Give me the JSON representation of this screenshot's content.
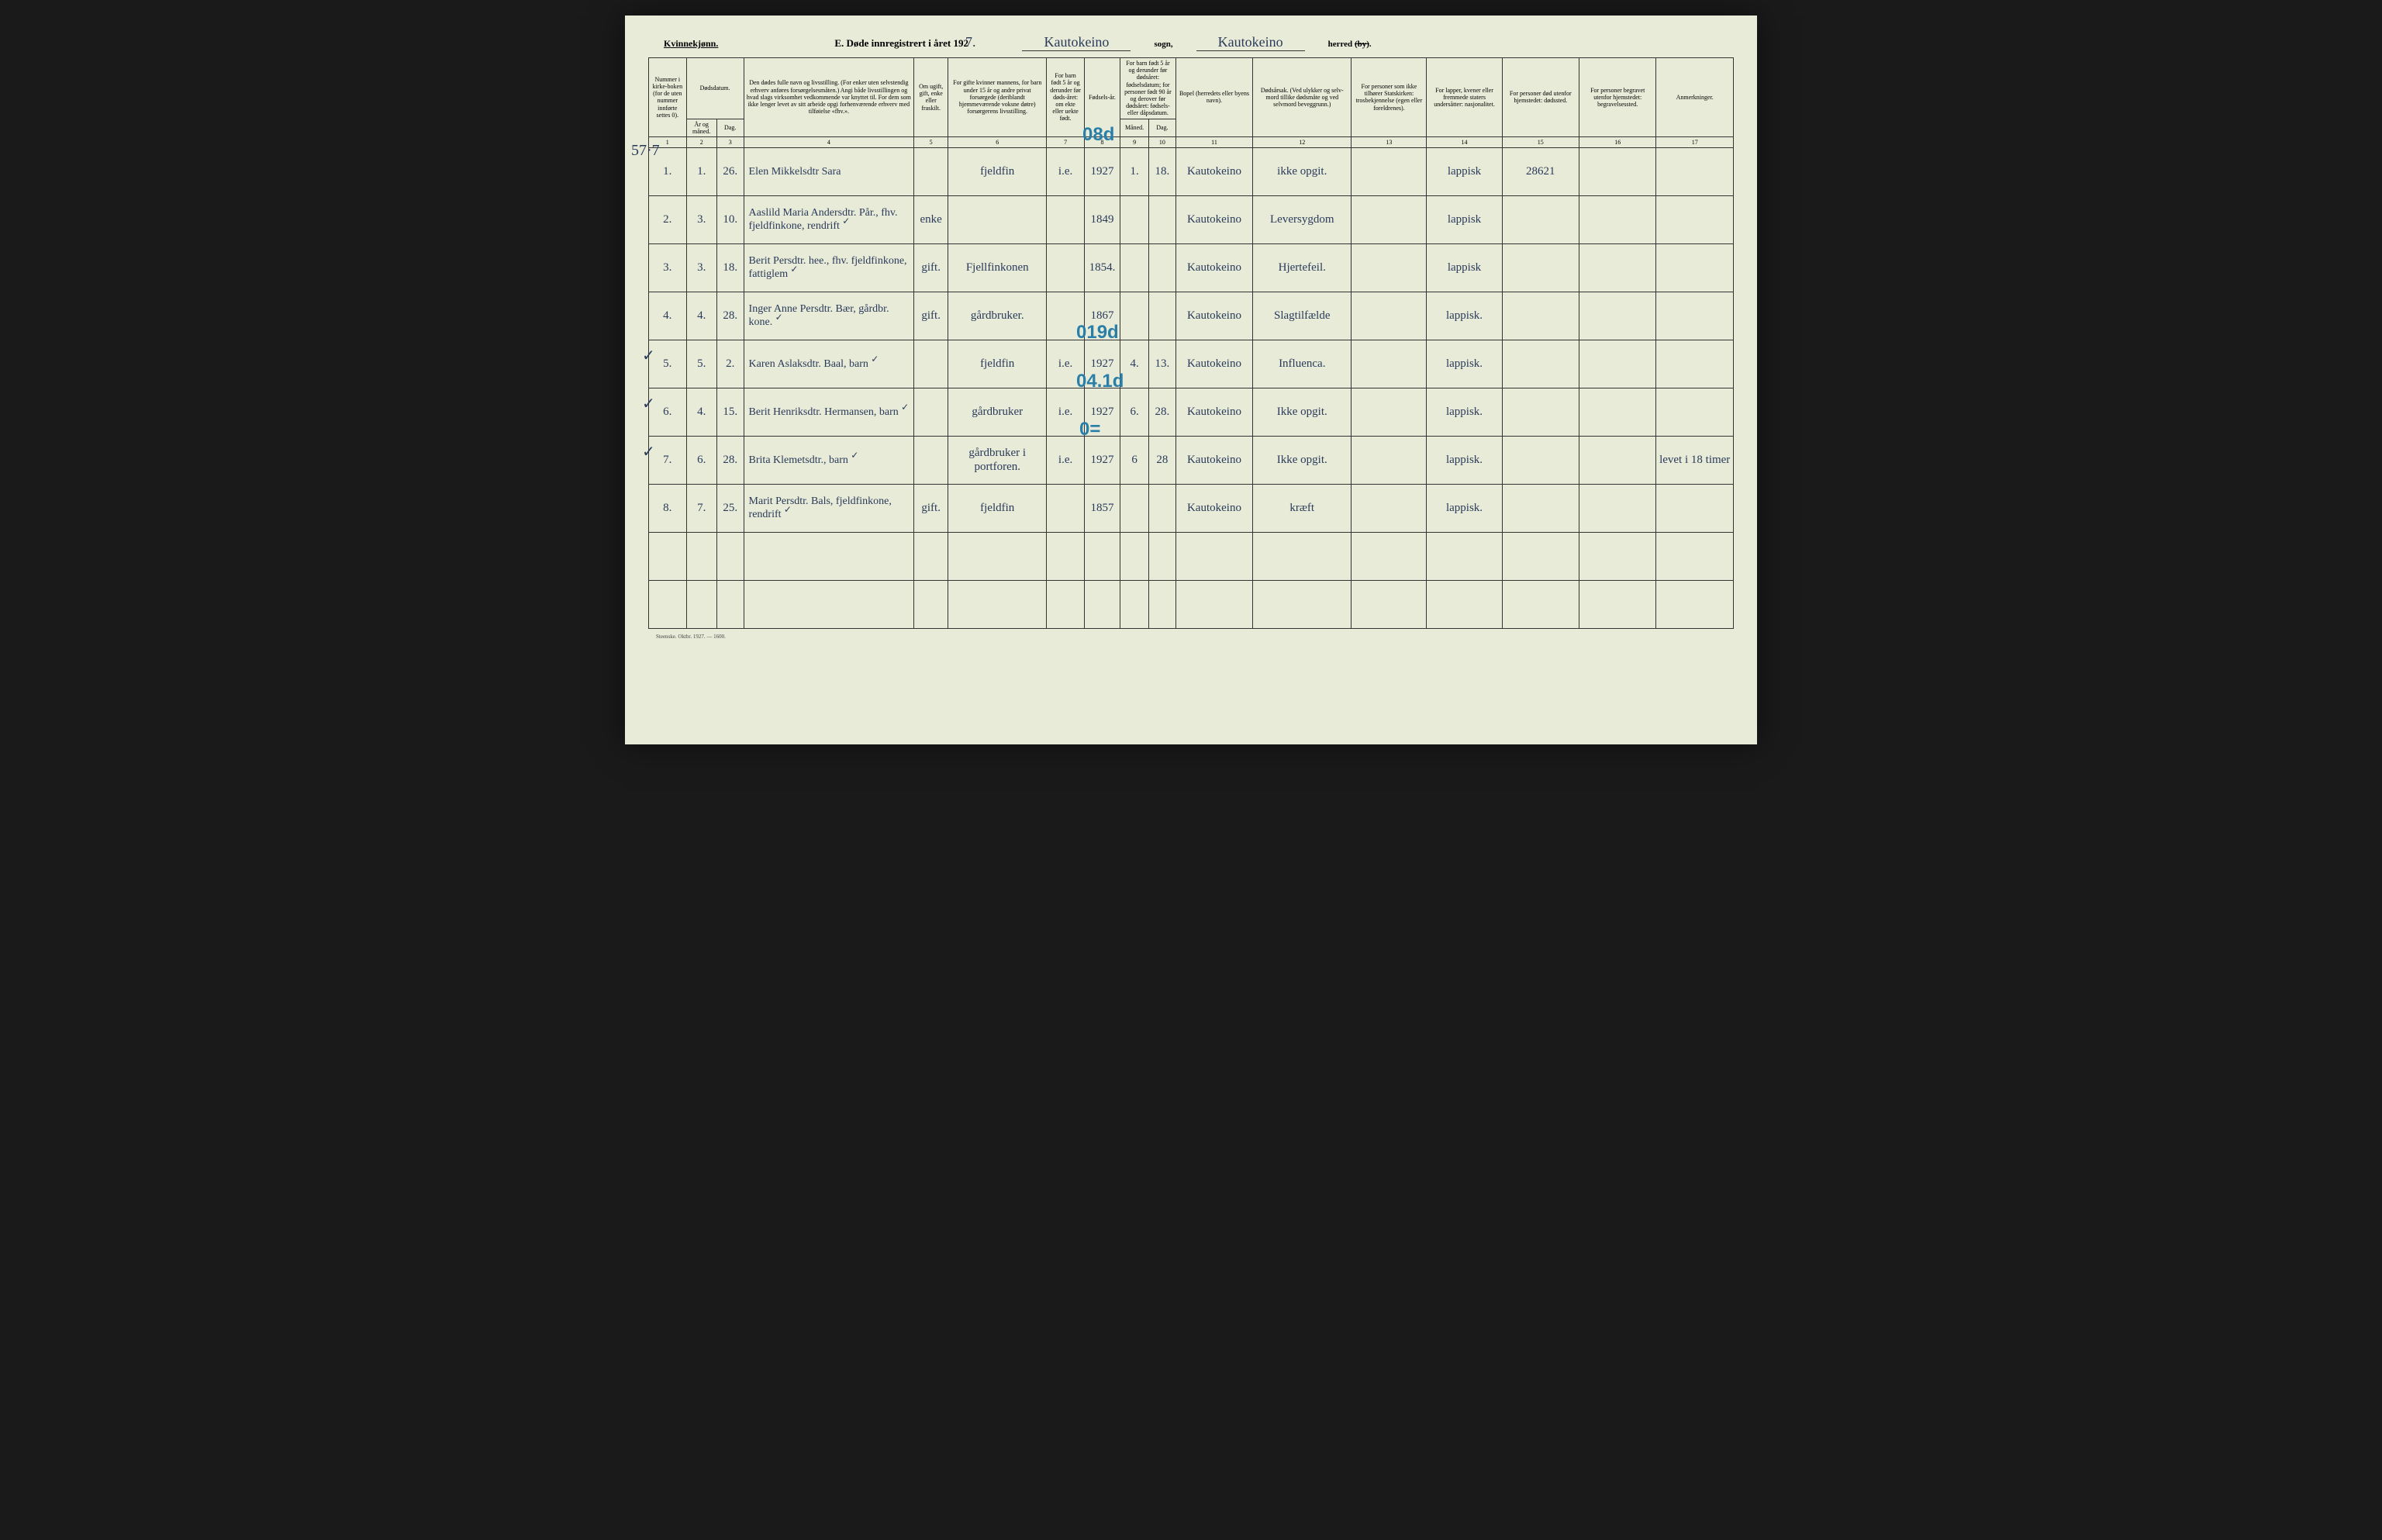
{
  "header": {
    "gender": "Kvinnekjønn.",
    "title_prefix": "E.  Døde innregistrert i året 192",
    "year_digit": "7.",
    "sogn_value": "Kautokeino",
    "sogn_label": "sogn,",
    "herred_value": "Kautokeino",
    "herred_label": "herred (by)."
  },
  "columns": {
    "c1": "Nummer i kirke-boken (for de uten nummer innførte settes 0).",
    "c2_top": "Dødsdatum.",
    "c2a": "År og måned.",
    "c2b": "Dag.",
    "c4": "Den dødes fulle navn og livsstilling. (For enker uten selvstendig erhverv anføres forsørgelsesmåten.) Angi både livsstillingen og hvad slags virksomhet vedkommende var knyttet til. For dem som ikke lenger levet av sitt arbeide opgi forhenværende erhverv med tilføielse «fhv.».",
    "c5": "Om ugift, gift, enke eller fraskilt.",
    "c6": "For gifte kvinner mannens, for barn under 15 år og andre privat forsørgede (deriblandt hjemmeværende voksne døtre) forsørgerens livsstilling.",
    "c7": "For barn født 5 år og derunder før døds-året: om ekte eller uekte født.",
    "c8": "Fødsels-år.",
    "c9_top": "For barn født 5 år og derunder før dødsåret: fødselsdatum; for personer født 90 år og derover før dødsåret: fødsels- eller dåpsdatum.",
    "c9a": "Måned.",
    "c9b": "Dag.",
    "c11": "Bopel (herredets eller byens navn).",
    "c12": "Dødsårsak. (Ved ulykker og selv-mord tillike dødsmåte og ved selvmord beveggrunn.)",
    "c13": "For personer som ikke tilhører Statskirken: trosbekjennelse (egen eller foreldrenes).",
    "c14": "For lapper, kvener eller fremmede staters undersåtter: nasjonalitet.",
    "c15": "For personer død utenfor hjemstedet: dødssted.",
    "c16": "For personer begravet utenfor hjemstedet: begravelsessted.",
    "c17": "Anmerkninger."
  },
  "col_nums": [
    "1",
    "2",
    "3",
    "4",
    "5",
    "6",
    "7",
    "8",
    "9",
    "10",
    "11",
    "12",
    "13",
    "14",
    "15",
    "16",
    "17"
  ],
  "rows": [
    {
      "num": "1.",
      "mo": "1.",
      "day": "26.",
      "name": "Elen Mikkelsdtr Sara",
      "check": "",
      "status": "",
      "spouse": "fjeldfin",
      "ekte": "i.e.",
      "year": "1927",
      "m": "1.",
      "d": "18.",
      "bopel": "Kautokeino",
      "cause": "ikke opgit.",
      "tros": "",
      "nat": "lappisk",
      "dsted": "28621",
      "bsted": "",
      "anm": ""
    },
    {
      "num": "2.",
      "mo": "3.",
      "day": "10.",
      "name": "Aaslild Maria Andersdtr. Pår., fhv. fjeldfinkone, rendrift",
      "check": "✓",
      "status": "enke",
      "spouse": "",
      "ekte": "",
      "year": "1849",
      "m": "",
      "d": "",
      "bopel": "Kautokeino",
      "cause": "Leversygdom",
      "tros": "",
      "nat": "lappisk",
      "dsted": "",
      "bsted": "",
      "anm": ""
    },
    {
      "num": "3.",
      "mo": "3.",
      "day": "18.",
      "name": "Berit Persdtr. hee., fhv. fjeldfinkone, fattiglem",
      "check": "✓",
      "status": "gift.",
      "spouse": "Fjellfinkonen",
      "ekte": "",
      "year": "1854.",
      "m": "",
      "d": "",
      "bopel": "Kautokeino",
      "cause": "Hjertefeil.",
      "tros": "",
      "nat": "lappisk",
      "dsted": "",
      "bsted": "",
      "anm": ""
    },
    {
      "num": "4.",
      "mo": "4.",
      "day": "28.",
      "name": "Inger Anne Persdtr. Bær, gårdbr. kone.",
      "check": "✓",
      "status": "gift.",
      "spouse": "gårdbruker.",
      "ekte": "",
      "year": "1867",
      "m": "",
      "d": "",
      "bopel": "Kautokeino",
      "cause": "Slagtilfælde",
      "tros": "",
      "nat": "lappisk.",
      "dsted": "",
      "bsted": "",
      "anm": ""
    },
    {
      "num": "5.",
      "mo": "5.",
      "day": "2.",
      "name": "Karen Aslaksdtr. Baal, barn",
      "check": "✓",
      "status": "",
      "spouse": "fjeldfin",
      "ekte": "i.e.",
      "year": "1927",
      "m": "4.",
      "d": "13.",
      "bopel": "Kautokeino",
      "cause": "Influenca.",
      "tros": "",
      "nat": "lappisk.",
      "dsted": "",
      "bsted": "",
      "anm": ""
    },
    {
      "num": "6.",
      "mo": "4.",
      "day": "15.",
      "name": "Berit Henriksdtr. Hermansen, barn",
      "check": "✓",
      "status": "",
      "spouse": "gårdbruker",
      "ekte": "i.e.",
      "year": "1927",
      "m": "6.",
      "d": "28.",
      "bopel": "Kautokeino",
      "cause": "Ikke opgit.",
      "tros": "",
      "nat": "lappisk.",
      "dsted": "",
      "bsted": "",
      "anm": ""
    },
    {
      "num": "7.",
      "mo": "6.",
      "day": "28.",
      "name": "Brita Klemetsdtr., barn",
      "check": "✓",
      "status": "",
      "spouse": "gårdbruker i portforen.",
      "ekte": "i.e.",
      "year": "1927",
      "m": "6",
      "d": "28",
      "bopel": "Kautokeino",
      "cause": "Ikke opgit.",
      "tros": "",
      "nat": "lappisk.",
      "dsted": "",
      "bsted": "",
      "anm": "levet i 18 timer"
    },
    {
      "num": "8.",
      "mo": "7.",
      "day": "25.",
      "name": "Marit Persdtr. Bals, fjeldfinkone, rendrift",
      "check": "✓",
      "status": "gift.",
      "spouse": "fjeldfin",
      "ekte": "",
      "year": "1857",
      "m": "",
      "d": "",
      "bopel": "Kautokeino",
      "cause": "kræft",
      "tros": "",
      "nat": "lappisk.",
      "dsted": "",
      "bsted": "",
      "anm": ""
    }
  ],
  "blue_marks": {
    "m1": "08d",
    "m2": "019d",
    "m3": "04.1d",
    "m4": "0="
  },
  "left_marks": {
    "lm1": "57·7",
    "lm5": "✓",
    "lm6": "✓",
    "lm7": "✓"
  },
  "footer": "Steenske. Oktbr. 1927. — 1600.",
  "styling": {
    "page_bg": "#e8ebd8",
    "border_color": "#333333",
    "ink_color": "#2a3a5a",
    "blue_pencil": "#2a7fa8",
    "header_fontsize": 13,
    "cell_fontsize": 9,
    "script_fontsize": 15
  }
}
